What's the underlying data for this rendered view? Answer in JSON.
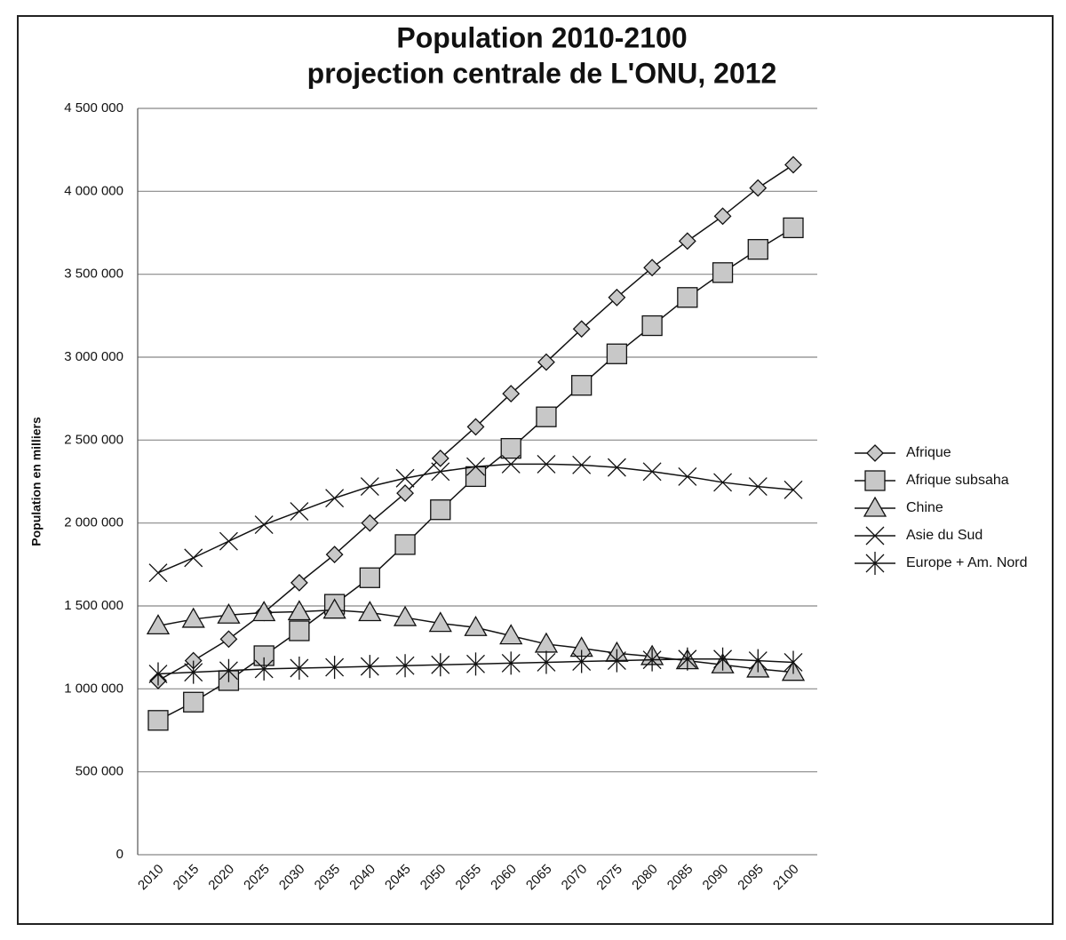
{
  "chart_data": {
    "type": "line",
    "title": "Population 2010-2100",
    "subtitle": "projection centrale de L'ONU, 2012",
    "y_label": "Population en milliers",
    "categories": [
      "2010",
      "2015",
      "2020",
      "2025",
      "2030",
      "2035",
      "2040",
      "2045",
      "2050",
      "2055",
      "2060",
      "2065",
      "2070",
      "2075",
      "2080",
      "2085",
      "2090",
      "2095",
      "2100"
    ],
    "series": [
      {
        "name": "Afrique",
        "color": "#c8c8c8",
        "marker": "diamond",
        "values": [
          1050000,
          1170000,
          1300000,
          1460000,
          1640000,
          1810000,
          2000000,
          2180000,
          2390000,
          2580000,
          2780000,
          2970000,
          3170000,
          3360000,
          3540000,
          3700000,
          3850000,
          4020000,
          4160000
        ]
      },
      {
        "name": "Afrique subsaha",
        "color": "#c8c8c8",
        "marker": "square",
        "values": [
          810000,
          920000,
          1050000,
          1200000,
          1350000,
          1510000,
          1670000,
          1870000,
          2080000,
          2280000,
          2450000,
          2640000,
          2830000,
          3020000,
          3190000,
          3360000,
          3510000,
          3650000,
          3780000
        ]
      },
      {
        "name": "Chine",
        "color": "#c8c8c8",
        "marker": "triangle",
        "values": [
          1380000,
          1420000,
          1445000,
          1460000,
          1465000,
          1475000,
          1460000,
          1430000,
          1395000,
          1370000,
          1320000,
          1270000,
          1245000,
          1215000,
          1195000,
          1170000,
          1145000,
          1120000,
          1100000
        ]
      },
      {
        "name": "Asie du Sud",
        "color": "#c8c8c8",
        "marker": "x",
        "values": [
          1700000,
          1790000,
          1890000,
          1990000,
          2070000,
          2150000,
          2220000,
          2270000,
          2310000,
          2340000,
          2355000,
          2355000,
          2350000,
          2335000,
          2310000,
          2280000,
          2245000,
          2220000,
          2200000
        ]
      },
      {
        "name": "Europe + Am. Nord",
        "color": "#c8c8c8",
        "marker": "star",
        "values": [
          1090000,
          1100000,
          1110000,
          1120000,
          1125000,
          1130000,
          1135000,
          1140000,
          1145000,
          1150000,
          1155000,
          1160000,
          1165000,
          1170000,
          1175000,
          1180000,
          1180000,
          1170000,
          1160000
        ]
      }
    ],
    "ylim": [
      0,
      4500000
    ],
    "yticks": [
      0,
      {
        "value": 500000,
        "label": "500 000"
      },
      {
        "value": 1000000,
        "label": "1 000 000"
      },
      {
        "value": 1500000,
        "label": "1 500 000"
      },
      {
        "value": 2000000,
        "label": "2 000 000"
      },
      {
        "value": 2500000,
        "label": "2 500 000"
      },
      {
        "value": 3000000,
        "label": "3 000 000"
      },
      {
        "value": 3500000,
        "label": "3 500 000"
      },
      {
        "value": 4000000,
        "label": "4 000 000"
      },
      {
        "value": 4500000,
        "label": "4 500 000"
      }
    ],
    "grid": true,
    "legend": "right"
  }
}
